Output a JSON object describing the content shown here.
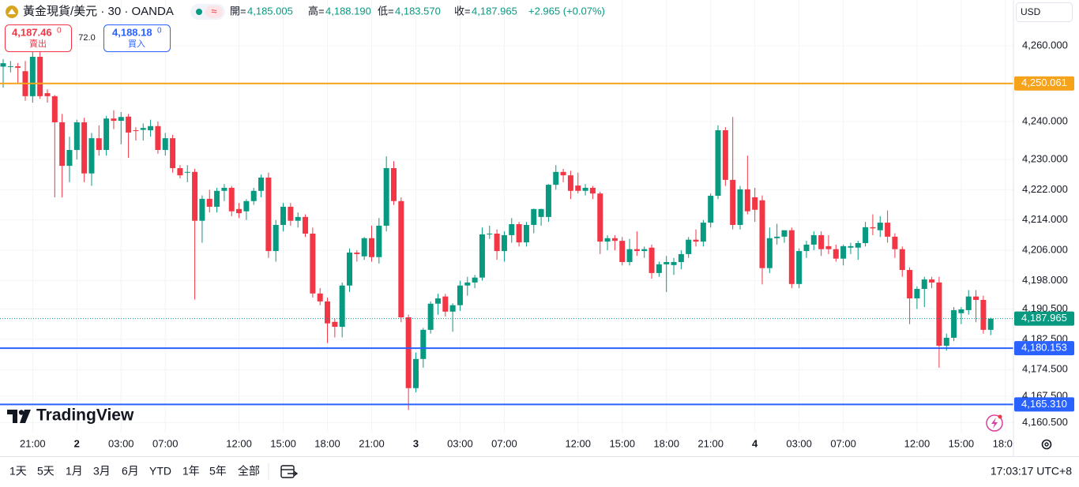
{
  "chart_data": {
    "type": "candlestick",
    "header": {
      "symbol": "黃金現貨/美元 · 30 · OANDA",
      "open_label": "開=",
      "open": "4,185.005",
      "high_label": "高=",
      "high": "4,188.190",
      "low_label": "低=",
      "low": "4,183.570",
      "close_label": "收=",
      "close": "4,187.965",
      "change": "+2.965 (+0.07%)",
      "approx": "≈"
    },
    "quote": {
      "sell": "4,187.46",
      "sell_sup": "0",
      "sell_label": "賣出",
      "spread": "72.0",
      "buy": "4,188.18",
      "buy_sup": "0",
      "buy_label": "買入"
    },
    "currency": "USD",
    "logo": "TradingView",
    "colors": {
      "up": "#089981",
      "down": "#f23645"
    },
    "ylim": [
      4158.5,
      4272.1
    ],
    "yticks": [
      {
        "value": 4260,
        "label": "4,260.000"
      },
      {
        "value": 4240,
        "label": "4,240.000"
      },
      {
        "value": 4230,
        "label": "4,230.000"
      },
      {
        "value": 4222,
        "label": "4,222.000"
      },
      {
        "value": 4214,
        "label": "4,214.000"
      },
      {
        "value": 4206,
        "label": "4,206.000"
      },
      {
        "value": 4198,
        "label": "4,198.000"
      },
      {
        "value": 4190.5,
        "label": "4,190.500"
      },
      {
        "value": 4182.5,
        "label": "4,182.500"
      },
      {
        "value": 4174.5,
        "label": "4,174.500"
      },
      {
        "value": 4167.5,
        "label": "4,167.500"
      },
      {
        "value": 4160.5,
        "label": "4,160.500"
      }
    ],
    "grid": true,
    "price_lines": [
      {
        "value": 4250.061,
        "label": "4,250.061",
        "color": "#f7a21b",
        "style": "solid"
      },
      {
        "value": 4187.965,
        "label": "4,187.965",
        "color": "#089981",
        "style": "dotted"
      },
      {
        "value": 4180.153,
        "label": "4,180.153",
        "color": "#2962ff",
        "style": "solid"
      },
      {
        "value": 4165.31,
        "label": "4,165.310",
        "color": "#2962ff",
        "style": "solid"
      }
    ],
    "categories": [
      null,
      null,
      null,
      null,
      "21:00",
      null,
      null,
      null,
      null,
      null,
      "2",
      null,
      null,
      null,
      null,
      null,
      "03:00",
      null,
      null,
      null,
      null,
      null,
      "07:00",
      null,
      null,
      null,
      null,
      null,
      null,
      null,
      null,
      null,
      "12:00",
      null,
      null,
      null,
      null,
      null,
      "15:00",
      null,
      null,
      null,
      null,
      null,
      "18:00",
      null,
      null,
      null,
      null,
      null,
      "21:00",
      null,
      null,
      null,
      null,
      null,
      "3",
      null,
      null,
      null,
      null,
      null,
      "03:00",
      null,
      null,
      null,
      null,
      null,
      "07:00",
      null,
      null,
      null,
      null,
      null,
      null,
      null,
      null,
      null,
      "12:00",
      null,
      null,
      null,
      null,
      null,
      "15:00",
      null,
      null,
      null,
      null,
      null,
      "18:00",
      null,
      null,
      null,
      null,
      null,
      "21:00",
      null,
      null,
      null,
      null,
      null,
      "4",
      null,
      null,
      null,
      null,
      null,
      "03:00",
      null,
      null,
      null,
      null,
      null,
      "07:00",
      null,
      null,
      null,
      null,
      null,
      null,
      null,
      null,
      null,
      "12:00",
      null,
      null,
      null,
      null,
      null,
      "15:00",
      null,
      null,
      null,
      null,
      null,
      "18:00"
    ],
    "ohlc": [
      [
        4254.5,
        4256.5,
        4249,
        4255.4
      ],
      [
        4254.4,
        4256,
        4253,
        4254.6
      ],
      [
        4254.6,
        4255.5,
        4250,
        4254.2
      ],
      [
        4253.3,
        4256,
        4245.5,
        4246.7
      ],
      [
        4246.7,
        4258.5,
        4245,
        4257.1
      ],
      [
        4257.1,
        4259.6,
        4246,
        4246.7
      ],
      [
        4247.5,
        4248.5,
        4245,
        4246.7
      ],
      [
        4246.7,
        4247,
        4220,
        4239.8
      ],
      [
        4239.8,
        4242,
        4220,
        4228.3
      ],
      [
        4228.3,
        4236,
        4224,
        4232.5
      ],
      [
        4232.5,
        4240.5,
        4230,
        4239.8
      ],
      [
        4239.8,
        4241,
        4224,
        4226.3
      ],
      [
        4226.3,
        4237,
        4223,
        4235.6
      ],
      [
        4235.6,
        4239,
        4231,
        4232.5
      ],
      [
        4232.5,
        4241.5,
        4231,
        4240.8
      ],
      [
        4240.8,
        4243,
        4238,
        4240.2
      ],
      [
        4240.2,
        4242.5,
        4234,
        4241.2
      ],
      [
        4241.3,
        4242,
        4230.4,
        4237.1
      ],
      [
        4237.7,
        4238.5,
        4235,
        4237.5
      ],
      [
        4237.8,
        4239.5,
        4235,
        4238.3
      ],
      [
        4237.7,
        4240.5,
        4236,
        4238.8
      ],
      [
        4238.8,
        4240,
        4231.5,
        4232.5
      ],
      [
        4232.5,
        4237,
        4231,
        4235.6
      ],
      [
        4235.6,
        4236.5,
        4226.5,
        4227.7
      ],
      [
        4227.7,
        4228.5,
        4225,
        4225.8
      ],
      [
        4226.5,
        4228.5,
        4224,
        4226.7
      ],
      [
        4226.7,
        4227.5,
        4193,
        4213.8
      ],
      [
        4213.8,
        4220.5,
        4208,
        4219.6
      ],
      [
        4219.6,
        4222,
        4216,
        4217.5
      ],
      [
        4217.5,
        4222.5,
        4216,
        4221.7
      ],
      [
        4221.7,
        4223.5,
        4219,
        4222.5
      ],
      [
        4222.5,
        4223,
        4215,
        4216.3
      ],
      [
        4216.9,
        4218.5,
        4214.5,
        4215.8
      ],
      [
        4216.3,
        4219.5,
        4214,
        4219
      ],
      [
        4219,
        4222.5,
        4218,
        4221.7
      ],
      [
        4221.7,
        4226,
        4220,
        4225.2
      ],
      [
        4225.2,
        4226.5,
        4204,
        4205.8
      ],
      [
        4205.8,
        4214,
        4203,
        4212.7
      ],
      [
        4212.7,
        4218.5,
        4211,
        4217.5
      ],
      [
        4217.5,
        4218.5,
        4212.5,
        4213.8
      ],
      [
        4213.8,
        4216,
        4212,
        4214.8
      ],
      [
        4214.8,
        4215.5,
        4209.5,
        4210.4
      ],
      [
        4210.4,
        4212,
        4193.5,
        4194.6
      ],
      [
        4194.6,
        4196,
        4191.5,
        4192.5
      ],
      [
        4192.5,
        4193.5,
        4181.5,
        4186.7
      ],
      [
        4187.1,
        4188,
        4183,
        4185.8
      ],
      [
        4185.8,
        4197.5,
        4183,
        4196.7
      ],
      [
        4196.7,
        4206.5,
        4195,
        4205.4
      ],
      [
        4205.4,
        4206,
        4203,
        4205
      ],
      [
        4204.4,
        4209.5,
        4203.5,
        4209.2
      ],
      [
        4209.2,
        4212.5,
        4203,
        4204.2
      ],
      [
        4204.2,
        4214.5,
        4202.5,
        4212.5
      ],
      [
        4212.5,
        4230.8,
        4211,
        4227.7
      ],
      [
        4227.7,
        4229.5,
        4218,
        4219
      ],
      [
        4219,
        4220,
        4187,
        4188.3
      ],
      [
        4188.3,
        4189,
        4163.8,
        4169.6
      ],
      [
        4169.6,
        4179,
        4168.5,
        4177.3
      ],
      [
        4177.3,
        4185.5,
        4175,
        4185
      ],
      [
        4185,
        4192.5,
        4184,
        4191.9
      ],
      [
        4191.9,
        4194.5,
        4189,
        4193.3
      ],
      [
        4193.8,
        4194.5,
        4188.5,
        4189.8
      ],
      [
        4189.8,
        4192,
        4184.5,
        4191.5
      ],
      [
        4191.5,
        4198,
        4190,
        4196.7
      ],
      [
        4196.7,
        4199,
        4194,
        4197.5
      ],
      [
        4197.5,
        4199.5,
        4196,
        4198.8
      ],
      [
        4198.8,
        4212,
        4198,
        4210.2
      ],
      [
        4210.2,
        4212.5,
        4209,
        4210.4
      ],
      [
        4210.4,
        4211.5,
        4203.5,
        4205.8
      ],
      [
        4205.8,
        4211,
        4203,
        4210
      ],
      [
        4210,
        4214.5,
        4208,
        4212.9
      ],
      [
        4212.9,
        4213.5,
        4207,
        4208.1
      ],
      [
        4208.1,
        4213.5,
        4207,
        4212.7
      ],
      [
        4212.7,
        4217,
        4210.5,
        4216.9
      ],
      [
        4214.8,
        4217,
        4212.5,
        4216.9
      ],
      [
        4214.8,
        4223.5,
        4213.5,
        4223.3
      ],
      [
        4223.3,
        4228.5,
        4222,
        4226.7
      ],
      [
        4226.7,
        4227.5,
        4224,
        4225.8
      ],
      [
        4225.8,
        4227,
        4219.5,
        4221.7
      ],
      [
        4223.1,
        4226.5,
        4221,
        4221.7
      ],
      [
        4221.7,
        4223.5,
        4220.5,
        4222.5
      ],
      [
        4222.5,
        4223,
        4219.5,
        4221
      ],
      [
        4221,
        4221.5,
        4205,
        4208.3
      ],
      [
        4208.3,
        4210,
        4206,
        4209.2
      ],
      [
        4209.2,
        4210,
        4206,
        4208.5
      ],
      [
        4208.5,
        4209.5,
        4202,
        4202.9
      ],
      [
        4202.9,
        4209,
        4202,
        4206.3
      ],
      [
        4206.3,
        4211,
        4204.5,
        4205.8
      ],
      [
        4205.8,
        4207,
        4204,
        4206.3
      ],
      [
        4206.7,
        4207.5,
        4198.5,
        4200
      ],
      [
        4200,
        4203,
        4199,
        4202.3
      ],
      [
        4202.3,
        4204.5,
        4195,
        4202.9
      ],
      [
        4202.1,
        4204,
        4199.5,
        4202.9
      ],
      [
        4202.9,
        4206,
        4201,
        4205
      ],
      [
        4205,
        4209.5,
        4204,
        4208.8
      ],
      [
        4208.8,
        4211.5,
        4207,
        4208.3
      ],
      [
        4208.3,
        4214,
        4207,
        4213.3
      ],
      [
        4213.3,
        4221,
        4212,
        4220.4
      ],
      [
        4220.4,
        4239,
        4219.5,
        4237.7
      ],
      [
        4237.7,
        4238.5,
        4223,
        4224.6
      ],
      [
        4224.6,
        4241.2,
        4211.5,
        4212.7
      ],
      [
        4212.7,
        4223,
        4211.5,
        4222.1
      ],
      [
        4222.1,
        4231,
        4215.5,
        4216.3
      ],
      [
        4220,
        4222.5,
        4213.5,
        4216.7
      ],
      [
        4219.2,
        4220.5,
        4197,
        4201.3
      ],
      [
        4201.3,
        4212,
        4200,
        4209.2
      ],
      [
        4209.2,
        4213,
        4207.5,
        4209.6
      ],
      [
        4209.6,
        4211,
        4208,
        4211.3
      ],
      [
        4211.3,
        4212,
        4196,
        4197.1
      ],
      [
        4197.1,
        4206.5,
        4196,
        4205.8
      ],
      [
        4205.8,
        4208.5,
        4204,
        4207.5
      ],
      [
        4207.5,
        4211,
        4206,
        4210
      ],
      [
        4210,
        4211,
        4204.5,
        4206.3
      ],
      [
        4207.1,
        4210,
        4205,
        4206.3
      ],
      [
        4206.3,
        4207.5,
        4203,
        4203.8
      ],
      [
        4203.8,
        4207.5,
        4202,
        4207.1
      ],
      [
        4206.7,
        4208,
        4205,
        4207.1
      ],
      [
        4206.7,
        4208.5,
        4203.5,
        4207.9
      ],
      [
        4207.9,
        4213.5,
        4207,
        4212.1
      ],
      [
        4212.1,
        4215.5,
        4210,
        4211.8
      ],
      [
        4211.3,
        4215,
        4209.5,
        4213.3
      ],
      [
        4213.3,
        4216.5,
        4208,
        4209.6
      ],
      [
        4209.6,
        4210.5,
        4204,
        4206.3
      ],
      [
        4206.3,
        4207,
        4199,
        4200.8
      ],
      [
        4200.8,
        4201.5,
        4186.5,
        4193.3
      ],
      [
        4193.3,
        4196.5,
        4190.5,
        4195.8
      ],
      [
        4195.8,
        4199,
        4191,
        4198.3
      ],
      [
        4198.3,
        4199,
        4196,
        4197.5
      ],
      [
        4197.5,
        4199,
        4175,
        4180.8
      ],
      [
        4180.8,
        4184,
        4179.5,
        4182.9
      ],
      [
        4182.9,
        4191,
        4182,
        4190.2
      ],
      [
        4189.4,
        4191,
        4186.5,
        4190.4
      ],
      [
        4190.2,
        4195.5,
        4189,
        4193.8
      ],
      [
        4193.8,
        4195.5,
        4187,
        4192.9
      ],
      [
        4192.9,
        4194,
        4184,
        4185
      ],
      [
        4185,
        4188.2,
        4183.6,
        4187.965
      ],
      null,
      null
    ],
    "ranges": [
      "1天",
      "5天",
      "1月",
      "3月",
      "6月",
      "YTD",
      "1年",
      "5年",
      "全部"
    ],
    "clock": "17:03:17 UTC+8"
  }
}
